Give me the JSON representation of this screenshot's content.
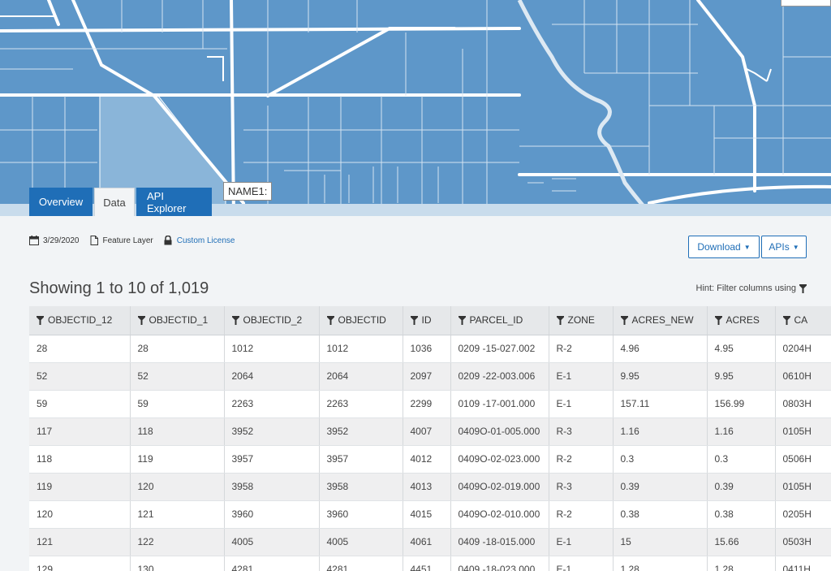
{
  "map": {
    "name_label": "NAME1:"
  },
  "tabs": [
    {
      "label": "Overview"
    },
    {
      "label": "Data"
    },
    {
      "label": "API Explorer"
    }
  ],
  "meta": {
    "date": "3/29/2020",
    "type": "Feature Layer",
    "license": "Custom License"
  },
  "buttons": {
    "download": "Download",
    "apis": "APIs"
  },
  "showing": "Showing 1 to 10 of 1,019",
  "hint": "Hint: Filter columns using",
  "table": {
    "columns": [
      "OBJECTID_12",
      "OBJECTID_1",
      "OBJECTID_2",
      "OBJECTID",
      "ID",
      "PARCEL_ID",
      "ZONE",
      "ACRES_NEW",
      "ACRES",
      "CA"
    ],
    "rows": [
      [
        "28",
        "28",
        "1012",
        "1012",
        "1036",
        "0209 -15-027.002",
        "R-2",
        "4.96",
        "4.95",
        "0204H"
      ],
      [
        "52",
        "52",
        "2064",
        "2064",
        "2097",
        "0209 -22-003.006",
        "E-1",
        "9.95",
        "9.95",
        "0610H"
      ],
      [
        "59",
        "59",
        "2263",
        "2263",
        "2299",
        "0109 -17-001.000",
        "E-1",
        "157.11",
        "156.99",
        "0803H"
      ],
      [
        "117",
        "118",
        "3952",
        "3952",
        "4007",
        "0409O-01-005.000",
        "R-3",
        "1.16",
        "1.16",
        "0105H"
      ],
      [
        "118",
        "119",
        "3957",
        "3957",
        "4012",
        "0409O-02-023.000",
        "R-2",
        "0.3",
        "0.3",
        "0506H"
      ],
      [
        "119",
        "120",
        "3958",
        "3958",
        "4013",
        "0409O-02-019.000",
        "R-3",
        "0.39",
        "0.39",
        "0105H"
      ],
      [
        "120",
        "121",
        "3960",
        "3960",
        "4015",
        "0409O-02-010.000",
        "R-2",
        "0.38",
        "0.38",
        "0205H"
      ],
      [
        "121",
        "122",
        "4005",
        "4005",
        "4061",
        "0409 -18-015.000",
        "E-1",
        "15",
        "15.66",
        "0503H"
      ],
      [
        "129",
        "130",
        "4281",
        "4281",
        "4451",
        "0409 -18-023.000",
        "E-1",
        "1.28",
        "1.28",
        "0411H"
      ]
    ]
  },
  "colors": {
    "map_fill": "#5e97c9",
    "accent": "#1f6eb7",
    "header_bg": "#e6e8ea"
  }
}
